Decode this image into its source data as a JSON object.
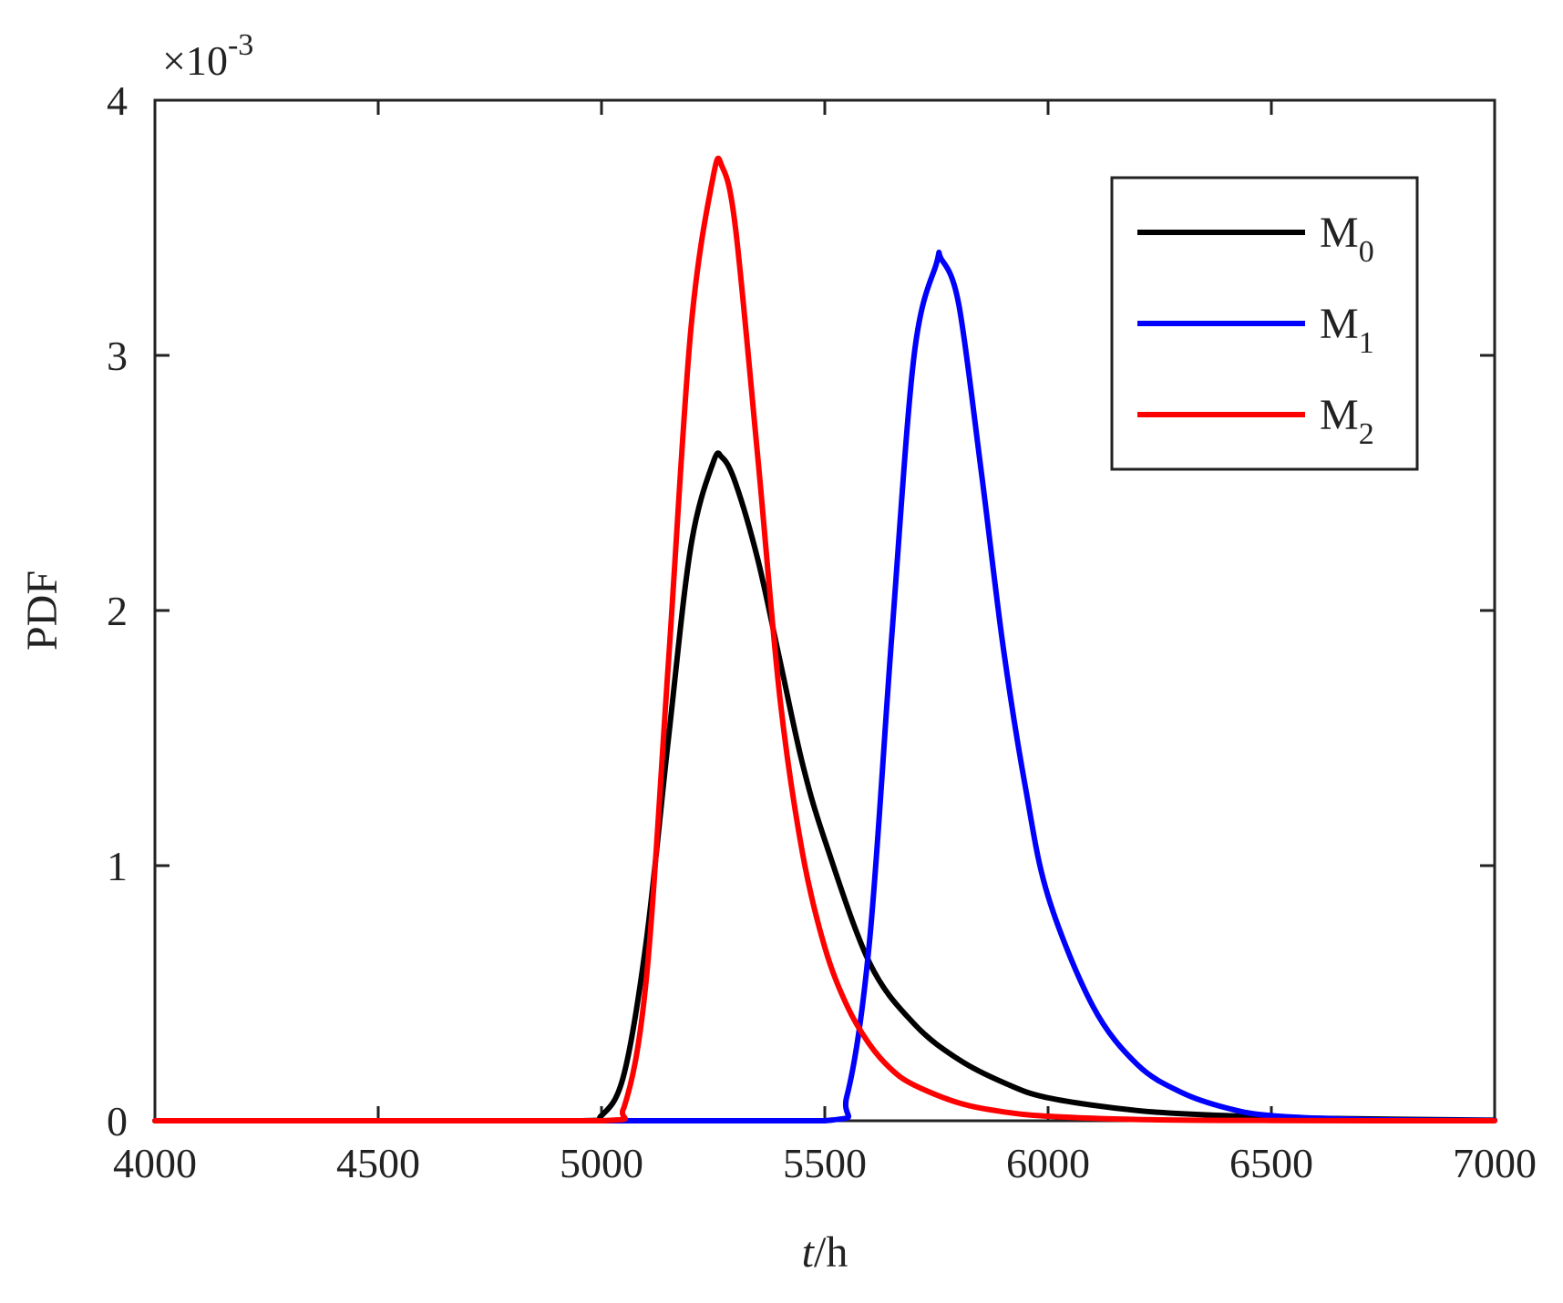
{
  "chart_data": {
    "type": "line",
    "title": "",
    "xlabel_italic": "t",
    "xlabel_rest": "/h",
    "ylabel": "PDF",
    "y_multiplier_prefix": "×10",
    "y_multiplier_exponent": "-3",
    "xlim": [
      4000,
      7000
    ],
    "ylim": [
      0,
      4
    ],
    "x_ticks": [
      "4000",
      "4500",
      "5000",
      "5500",
      "6000",
      "6500",
      "7000"
    ],
    "y_ticks": [
      "0",
      "1",
      "2",
      "3",
      "4"
    ],
    "grid": false,
    "legend_position": "top-right",
    "series": [
      {
        "name": "M",
        "subscript": "0",
        "color": "#000000",
        "x": [
          4000,
          4500,
          4950,
          5000,
          5050,
          5100,
          5150,
          5200,
          5250,
          5270,
          5300,
          5350,
          5400,
          5450,
          5500,
          5600,
          5700,
          5800,
          5900,
          6000,
          6200,
          6400,
          6600,
          7000
        ],
        "y": [
          0,
          0,
          0.0,
          0.02,
          0.18,
          0.7,
          1.5,
          2.25,
          2.58,
          2.6,
          2.5,
          2.2,
          1.8,
          1.4,
          1.1,
          0.62,
          0.38,
          0.24,
          0.15,
          0.09,
          0.04,
          0.02,
          0.01,
          0.002
        ]
      },
      {
        "name": "M",
        "subscript": "1",
        "color": "#0000ff",
        "x": [
          4000,
          5000,
          5500,
          5550,
          5600,
          5650,
          5700,
          5750,
          5760,
          5800,
          5850,
          5900,
          5950,
          6000,
          6100,
          6200,
          6300,
          6400,
          6500,
          6700,
          7000
        ],
        "y": [
          0,
          0,
          0.0,
          0.1,
          0.7,
          1.9,
          3.0,
          3.36,
          3.38,
          3.2,
          2.55,
          1.85,
          1.3,
          0.88,
          0.45,
          0.22,
          0.11,
          0.05,
          0.02,
          0.005,
          0.001
        ]
      },
      {
        "name": "M",
        "subscript": "2",
        "color": "#ff0000",
        "x": [
          4000,
          4500,
          5000,
          5050,
          5100,
          5150,
          5200,
          5250,
          5270,
          5300,
          5350,
          5400,
          5450,
          5500,
          5550,
          5600,
          5650,
          5700,
          5800,
          5900,
          6000,
          6200,
          6500,
          7000
        ],
        "y": [
          0,
          0,
          0.0,
          0.05,
          0.55,
          1.8,
          3.1,
          3.7,
          3.74,
          3.5,
          2.6,
          1.65,
          1.05,
          0.68,
          0.45,
          0.3,
          0.2,
          0.14,
          0.07,
          0.035,
          0.018,
          0.005,
          0.001,
          0
        ]
      }
    ]
  }
}
